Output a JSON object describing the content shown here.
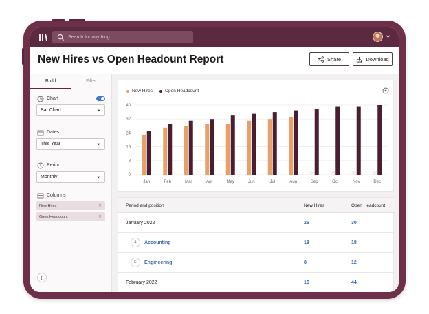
{
  "search": {
    "placeholder": "Search for anything"
  },
  "header": {
    "title": "New Hires vs Open Headount Report",
    "share_label": "Share",
    "download_label": "Download"
  },
  "sidebar": {
    "tabs": [
      "Build",
      "Filter"
    ],
    "chart_label": "Chart",
    "chart_toggle_on": true,
    "chart_value": "Bar Chart",
    "dates_label": "Dates",
    "dates_value": "This Year",
    "period_label": "Period",
    "period_value": "Monthly",
    "columns_label": "Columns",
    "column_chips": [
      "New Hires",
      "Open Headcount"
    ]
  },
  "colors": {
    "new_hires": "#e8a06a",
    "open_headcount": "#4a1e30",
    "faded_bar": "#f0eeef",
    "brand": "#5c2a40",
    "link": "#3d67a8"
  },
  "chart_data": {
    "type": "bar",
    "categories": [
      "Jan",
      "Feb",
      "Mar",
      "Apr",
      "May",
      "Jun",
      "Jul",
      "Aug",
      "Sep",
      "Oct",
      "Nov",
      "Dec"
    ],
    "series": [
      {
        "name": "New Hires",
        "values": [
          23,
          27,
          28,
          29,
          29,
          31,
          32,
          33,
          2,
          2,
          2,
          2
        ]
      },
      {
        "name": "Open Headcount",
        "values": [
          25,
          29,
          31,
          32,
          34,
          35,
          36,
          37,
          38,
          39,
          39,
          40
        ]
      }
    ],
    "yticks": [
      0,
      8,
      16,
      24,
      32,
      40
    ],
    "ylim": [
      0,
      40
    ],
    "grid": true,
    "legend": "top-left"
  },
  "table": {
    "headers": [
      "Period and position",
      "New Hires",
      "Open Headcount"
    ],
    "rows": [
      {
        "name": "January 2022",
        "badge": "",
        "new_hires": "26",
        "open_headcount": "30"
      },
      {
        "name": "Accounting",
        "badge": "A",
        "new_hires": "18",
        "open_headcount": "18"
      },
      {
        "name": "Engineering",
        "badge": "E",
        "new_hires": "8",
        "open_headcount": "12"
      },
      {
        "name": "February 2022",
        "badge": "",
        "new_hires": "16",
        "open_headcount": "44"
      }
    ]
  }
}
